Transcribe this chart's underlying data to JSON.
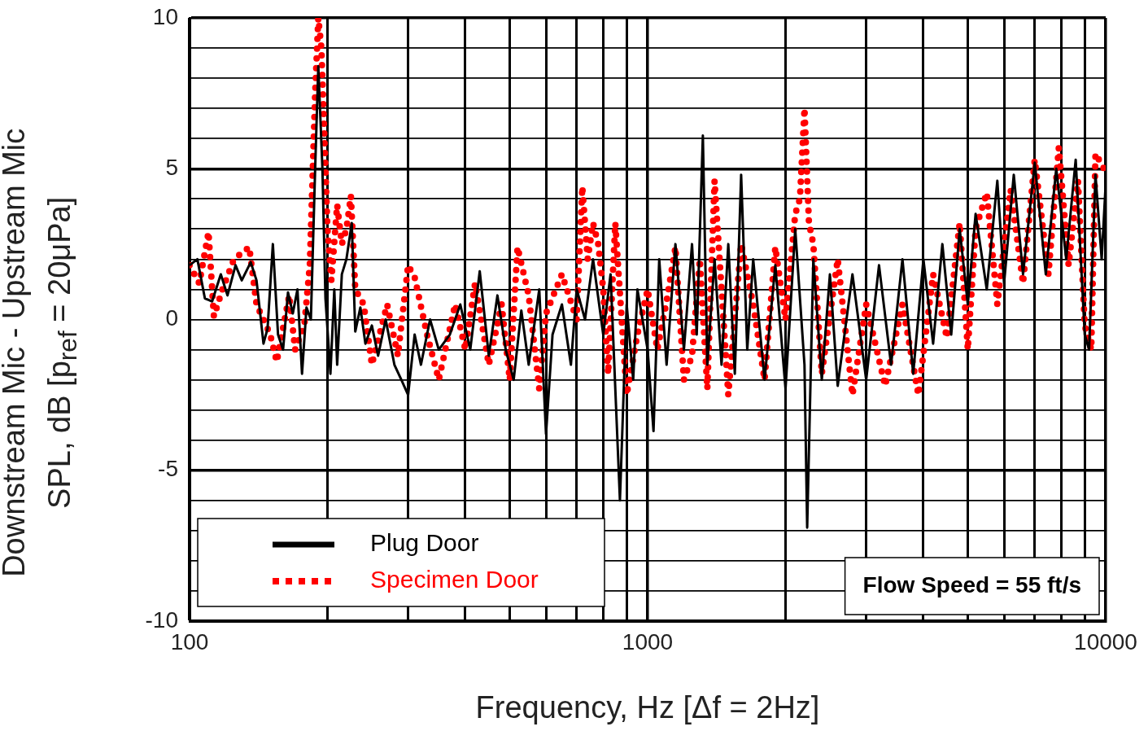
{
  "chart_data": {
    "type": "line",
    "xlabel": "Frequency, Hz [Δf = 2Hz]",
    "ylabel": "Downstream Mic - Upstream Mic\nSPL, dB [p$_{ref}$ = 20μPa]",
    "log": "x",
    "xlim": [
      100,
      10000
    ],
    "ylim": [
      -10,
      10
    ],
    "xticks": [
      100,
      {
        "value": 200,
        "label": null
      },
      {
        "value": 300,
        "label": null
      },
      {
        "value": 400,
        "label": null
      },
      {
        "value": 500,
        "label": null
      },
      {
        "value": 600,
        "label": null
      },
      {
        "value": 700,
        "label": null
      },
      {
        "value": 800,
        "label": null
      },
      {
        "value": 900,
        "label": null
      },
      1000,
      {
        "value": 2000,
        "label": null
      },
      {
        "value": 3000,
        "label": null
      },
      {
        "value": 4000,
        "label": null
      },
      {
        "value": 5000,
        "label": null
      },
      {
        "value": 6000,
        "label": null
      },
      {
        "value": 7000,
        "label": null
      },
      {
        "value": 8000,
        "label": null
      },
      {
        "value": 9000,
        "label": null
      },
      10000
    ],
    "yticks": [
      -10,
      {
        "value": -9,
        "label": null
      },
      {
        "value": -8,
        "label": null
      },
      {
        "value": -7,
        "label": null
      },
      {
        "value": -6,
        "label": null
      },
      -5,
      {
        "value": -4,
        "label": null
      },
      {
        "value": -3,
        "label": null
      },
      {
        "value": -2,
        "label": null
      },
      {
        "value": -1,
        "label": null
      },
      0,
      {
        "value": 1,
        "label": null
      },
      {
        "value": 2,
        "label": null
      },
      {
        "value": 3,
        "label": null
      },
      {
        "value": 4,
        "label": null
      },
      5,
      {
        "value": 6,
        "label": null
      },
      {
        "value": 7,
        "label": null
      },
      {
        "value": 8,
        "label": null
      },
      {
        "value": 9,
        "label": null
      },
      10
    ],
    "grid": true,
    "legend": "bottom left",
    "marker": "none",
    "annotations": [
      "Flow Speed = 55 ft/s"
    ],
    "series": [
      {
        "name": "Plug Door",
        "color": "#000000",
        "line_style": "solid",
        "x": [
          100,
          104,
          108,
          112,
          117,
          121,
          126,
          130,
          136,
          140,
          145,
          148,
          152,
          156,
          160,
          164,
          168,
          172,
          176,
          180,
          184,
          188,
          191,
          195,
          198,
          203,
          207,
          210,
          215,
          220,
          226,
          230,
          236,
          242,
          250,
          258,
          268,
          280,
          290,
          300,
          310,
          320,
          335,
          350,
          370,
          390,
          410,
          430,
          450,
          470,
          490,
          510,
          530,
          550,
          580,
          600,
          620,
          650,
          680,
          700,
          730,
          760,
          800,
          830,
          870,
          900,
          930,
          950,
          1000,
          1030,
          1060,
          1100,
          1150,
          1200,
          1250,
          1280,
          1320,
          1350,
          1400,
          1450,
          1500,
          1550,
          1600,
          1650,
          1700,
          1800,
          1900,
          2000,
          2100,
          2200,
          2230,
          2300,
          2400,
          2500,
          2600,
          2800,
          3000,
          3200,
          3400,
          3600,
          3800,
          4000,
          4200,
          4400,
          4600,
          4800,
          5000,
          5200,
          5500,
          5800,
          6000,
          6300,
          6600,
          7000,
          7400,
          7800,
          8200,
          8600,
          9000,
          9200,
          9500,
          9800,
          10000
        ],
        "values": [
          1.8,
          2.0,
          0.7,
          0.6,
          1.5,
          0.8,
          1.8,
          1.3,
          1.9,
          1.3,
          -0.8,
          -0.3,
          2.5,
          -0.5,
          -1.0,
          0.9,
          0.2,
          1.0,
          -1.8,
          0.4,
          0.0,
          5.0,
          8.4,
          5.0,
          0.7,
          -1.8,
          1.0,
          -1.5,
          1.5,
          2.0,
          3.2,
          -0.4,
          0.4,
          -0.8,
          -0.2,
          -1.2,
          0.0,
          -1.5,
          -2.0,
          -2.5,
          -0.5,
          -1.5,
          0.0,
          -1.0,
          -0.5,
          0.5,
          -1.0,
          1.6,
          -1.2,
          0.8,
          -1.0,
          -2.0,
          0.3,
          -1.5,
          1.0,
          -3.8,
          -0.5,
          0.5,
          -1.5,
          1.0,
          0.0,
          2.0,
          -0.5,
          1.5,
          -6.0,
          0.5,
          -2.0,
          1.0,
          -1.0,
          -3.7,
          2.0,
          -1.5,
          2.5,
          -1.0,
          2.5,
          -0.5,
          6.1,
          -1.5,
          2.0,
          -1.5,
          2.5,
          -1.8,
          4.8,
          -1.0,
          2.0,
          -2.0,
          1.8,
          -2.3,
          3.0,
          -1.5,
          -6.9,
          2.0,
          -2.0,
          1.5,
          -2.2,
          1.5,
          -2.0,
          1.8,
          -1.5,
          2.0,
          -1.8,
          2.0,
          -0.8,
          2.5,
          -0.5,
          3.0,
          0.5,
          3.5,
          1.0,
          4.6,
          1.2,
          4.8,
          1.5,
          5.2,
          1.5,
          5.0,
          2.0,
          5.3,
          -0.5,
          -1.0,
          4.8,
          2.0,
          4.5
        ]
      },
      {
        "name": "Specimen Door",
        "color": "#ff0000",
        "line_style": "dotted",
        "x": [
          100,
          105,
          110,
          113,
          118,
          125,
          135,
          140,
          150,
          155,
          165,
          170,
          178,
          183,
          188,
          191,
          194,
          198,
          200,
          204,
          210,
          215,
          220,
          225,
          230,
          240,
          250,
          270,
          285,
          300,
          310,
          330,
          350,
          380,
          400,
          420,
          450,
          480,
          500,
          520,
          550,
          580,
          600,
          650,
          700,
          720,
          740,
          760,
          780,
          800,
          820,
          850,
          900,
          950,
          1000,
          1050,
          1100,
          1150,
          1200,
          1250,
          1300,
          1350,
          1400,
          1450,
          1500,
          1600,
          1700,
          1800,
          1900,
          2000,
          2100,
          2150,
          2200,
          2250,
          2300,
          2400,
          2600,
          2800,
          3000,
          3300,
          3600,
          3900,
          4200,
          4500,
          4800,
          5000,
          5200,
          5500,
          5800,
          6200,
          6600,
          7000,
          7500,
          7900,
          8300,
          8700,
          9000,
          9300,
          9500,
          10000
        ],
        "values": [
          1.8,
          1.2,
          2.9,
          0.1,
          1.0,
          2.0,
          2.4,
          0.5,
          -0.5,
          -1.4,
          0.8,
          -1.0,
          -0.2,
          1.8,
          7.5,
          10.0,
          9.0,
          5.0,
          3.0,
          1.3,
          3.8,
          2.5,
          3.0,
          4.1,
          1.0,
          0.5,
          -1.5,
          0.5,
          -1.2,
          1.8,
          1.4,
          -0.5,
          -2.0,
          0.5,
          -1.0,
          1.2,
          -1.5,
          0.5,
          -2.0,
          2.4,
          0.8,
          -2.3,
          0.2,
          1.5,
          0.0,
          4.4,
          2.0,
          3.2,
          2.5,
          1.0,
          -1.8,
          3.2,
          -2.5,
          -0.5,
          1.0,
          -1.0,
          0.6,
          2.4,
          -2.0,
          -1.2,
          2.0,
          -2.3,
          4.6,
          1.0,
          -2.5,
          2.5,
          0.5,
          -2.0,
          2.4,
          0.0,
          3.5,
          4.0,
          7.0,
          3.2,
          2.5,
          -1.8,
          2.0,
          -2.5,
          0.5,
          -2.2,
          0.5,
          -2.5,
          1.5,
          -0.6,
          3.2,
          -1.0,
          3.0,
          4.2,
          0.5,
          4.3,
          1.2,
          5.3,
          1.5,
          5.7,
          1.8,
          4.6,
          -0.2,
          -1.0,
          5.5,
          4.9
        ]
      }
    ]
  }
}
